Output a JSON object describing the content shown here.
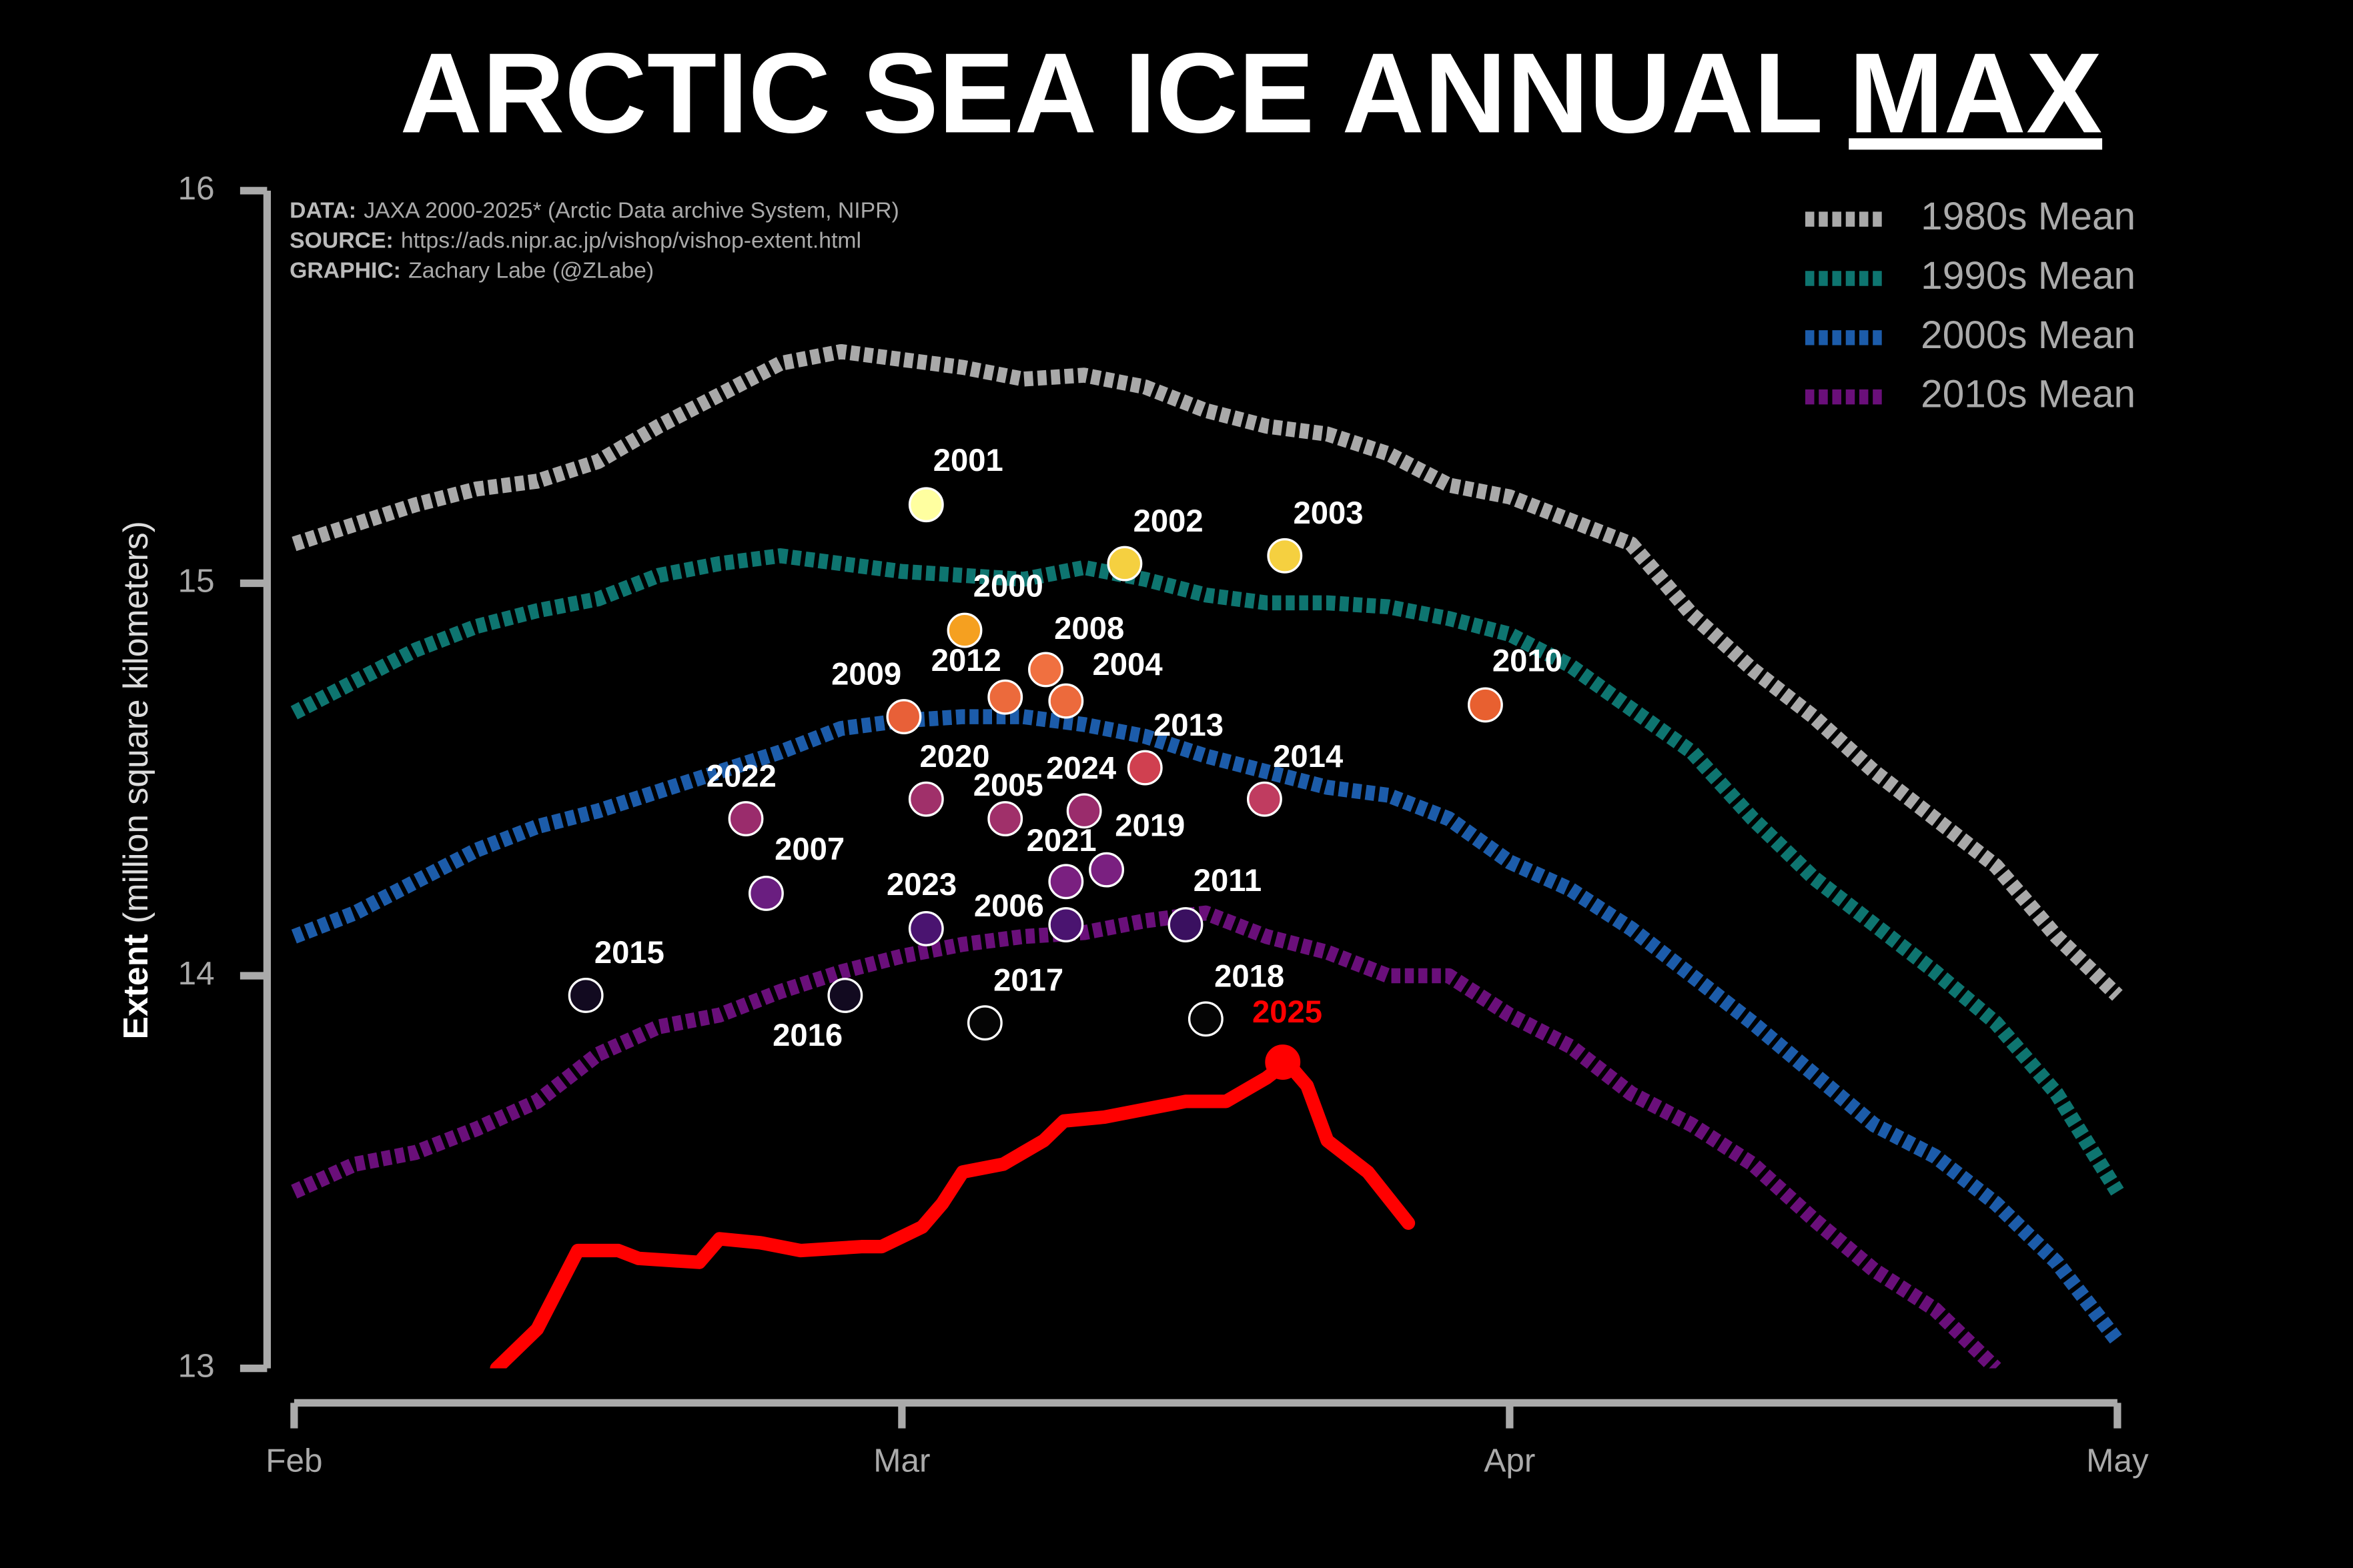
{
  "chart_data": {
    "type": "line",
    "title": "ARCTIC SEA ICE ANNUAL",
    "title_underlined": "MAX",
    "source_lines": [
      {
        "label": "DATA:",
        "text": "JAXA 2000-2025* (Arctic Data archive System, NIPR)"
      },
      {
        "label": "SOURCE:",
        "text": "https://ads.nipr.ac.jp/vishop/vishop-extent.html"
      },
      {
        "label": "GRAPHIC:",
        "text": "Zachary Labe (@ZLabe)"
      }
    ],
    "y_label": {
      "bold": "Extent",
      "text": "(million square kilometers)"
    },
    "xlim": [
      0,
      90
    ],
    "xticks": [
      {
        "value": 0,
        "label": "Feb"
      },
      {
        "value": 30,
        "label": "Mar"
      },
      {
        "value": 60,
        "label": "Apr"
      },
      {
        "value": 90,
        "label": "May"
      }
    ],
    "ylim": [
      13,
      16
    ],
    "yticks": [
      13,
      14,
      15,
      16
    ],
    "legend": "upper right",
    "x": [
      0,
      3,
      6,
      9,
      12,
      15,
      18,
      21,
      24,
      27,
      30,
      33,
      36,
      39,
      42,
      45,
      48,
      51,
      54,
      57,
      60,
      63,
      66,
      69,
      72,
      75,
      78,
      81,
      84,
      87,
      90
    ],
    "series": [
      {
        "name": "1980s Mean",
        "color": "#a9a9a9",
        "dashed": true,
        "values": [
          15.1,
          15.15,
          15.2,
          15.24,
          15.26,
          15.31,
          15.4,
          15.48,
          15.56,
          15.59,
          15.57,
          15.55,
          15.52,
          15.53,
          15.5,
          15.44,
          15.4,
          15.38,
          15.33,
          15.25,
          15.22,
          15.16,
          15.1,
          14.92,
          14.78,
          14.66,
          14.52,
          14.4,
          14.28,
          14.1,
          13.95
        ]
      },
      {
        "name": "1990s Mean",
        "color": "#0e7570",
        "dashed": true,
        "values": [
          14.67,
          14.75,
          14.83,
          14.89,
          14.93,
          14.96,
          15.02,
          15.05,
          15.07,
          15.05,
          15.03,
          15.02,
          15.01,
          15.04,
          15.01,
          14.97,
          14.95,
          14.95,
          14.94,
          14.91,
          14.87,
          14.79,
          14.68,
          14.57,
          14.4,
          14.25,
          14.13,
          14.01,
          13.88,
          13.7,
          13.45
        ]
      },
      {
        "name": "2000s Mean",
        "color": "#1c5caa",
        "dashed": true,
        "values": [
          14.1,
          14.16,
          14.24,
          14.32,
          14.38,
          14.42,
          14.47,
          14.52,
          14.57,
          14.63,
          14.65,
          14.66,
          14.66,
          14.64,
          14.61,
          14.56,
          14.52,
          14.48,
          14.46,
          14.4,
          14.29,
          14.22,
          14.12,
          14.0,
          13.88,
          13.75,
          13.62,
          13.54,
          13.42,
          13.27,
          13.07
        ]
      },
      {
        "name": "2010s Mean",
        "color": "#6a0f7a",
        "dashed": true,
        "values": [
          13.45,
          13.52,
          13.55,
          13.61,
          13.68,
          13.8,
          13.87,
          13.9,
          13.96,
          14.01,
          14.05,
          14.08,
          14.1,
          14.11,
          14.14,
          14.16,
          14.1,
          14.06,
          14.0,
          14.0,
          13.9,
          13.82,
          13.7,
          13.62,
          13.52,
          13.38,
          13.25,
          13.15,
          13.0,
          null,
          null
        ]
      },
      {
        "color": "#ff0000",
        "dashed": false,
        "x": [
          10,
          12,
          14,
          16,
          17,
          20,
          21,
          23,
          25,
          28,
          29,
          31,
          32,
          33,
          35,
          37,
          38,
          40,
          42,
          44,
          46,
          48,
          49,
          50,
          51,
          53,
          55
        ],
        "values": [
          13.0,
          13.1,
          13.3,
          13.3,
          13.28,
          13.27,
          13.33,
          13.32,
          13.3,
          13.31,
          13.31,
          13.36,
          13.42,
          13.5,
          13.52,
          13.58,
          13.63,
          13.64,
          13.66,
          13.68,
          13.68,
          13.74,
          13.78,
          13.72,
          13.58,
          13.5,
          13.37
        ]
      }
    ],
    "points": [
      {
        "label": "2001",
        "x": 31.2,
        "y": 15.2,
        "color": "#ffffa0"
      },
      {
        "label": "2002",
        "x": 41.0,
        "y": 15.05,
        "color": "#f5d040"
      },
      {
        "label": "2003",
        "x": 48.9,
        "y": 15.07,
        "color": "#f5d040"
      },
      {
        "label": "2000",
        "x": 33.1,
        "y": 14.88,
        "color": "#f5a020"
      },
      {
        "label": "2008",
        "x": 37.1,
        "y": 14.78,
        "color": "#f07040"
      },
      {
        "label": "2012",
        "x": 35.1,
        "y": 14.71,
        "color": "#ec6a3c"
      },
      {
        "label": "2004",
        "x": 38.1,
        "y": 14.7,
        "color": "#ec6a3c"
      },
      {
        "label": "2009",
        "x": 30.1,
        "y": 14.66,
        "color": "#e86038"
      },
      {
        "label": "2010",
        "x": 58.8,
        "y": 14.69,
        "color": "#e86030"
      },
      {
        "label": "2013",
        "x": 42.0,
        "y": 14.53,
        "color": "#d04050"
      },
      {
        "label": "2014",
        "x": 47.9,
        "y": 14.45,
        "color": "#c03c60"
      },
      {
        "label": "2020",
        "x": 31.2,
        "y": 14.45,
        "color": "#a0306a"
      },
      {
        "label": "2005",
        "x": 35.1,
        "y": 14.4,
        "color": "#a0306a"
      },
      {
        "label": "2024",
        "x": 39.0,
        "y": 14.42,
        "color": "#9a2c6c"
      },
      {
        "label": "2022",
        "x": 22.3,
        "y": 14.4,
        "color": "#9a2c6c"
      },
      {
        "label": "2021",
        "x": 38.1,
        "y": 14.24,
        "color": "#7a2080"
      },
      {
        "label": "2019",
        "x": 40.1,
        "y": 14.27,
        "color": "#7a2080"
      },
      {
        "label": "2007",
        "x": 23.3,
        "y": 14.21,
        "color": "#6a1e80"
      },
      {
        "label": "2023",
        "x": 31.2,
        "y": 14.12,
        "color": "#4a1470"
      },
      {
        "label": "2006",
        "x": 38.1,
        "y": 14.13,
        "color": "#4a1470"
      },
      {
        "label": "2011",
        "x": 44.0,
        "y": 14.13,
        "color": "#3a1060"
      },
      {
        "label": "2015",
        "x": 14.4,
        "y": 13.95,
        "color": "#120a20"
      },
      {
        "label": "2016",
        "x": 27.2,
        "y": 13.95,
        "color": "#120a20"
      },
      {
        "label": "2017",
        "x": 34.1,
        "y": 13.88,
        "color": "#050505"
      },
      {
        "label": "2018",
        "x": 45.0,
        "y": 13.89,
        "color": "#050505"
      },
      {
        "label": "2025",
        "x": 48.8,
        "y": 13.78,
        "color": "#ff0000"
      }
    ]
  }
}
